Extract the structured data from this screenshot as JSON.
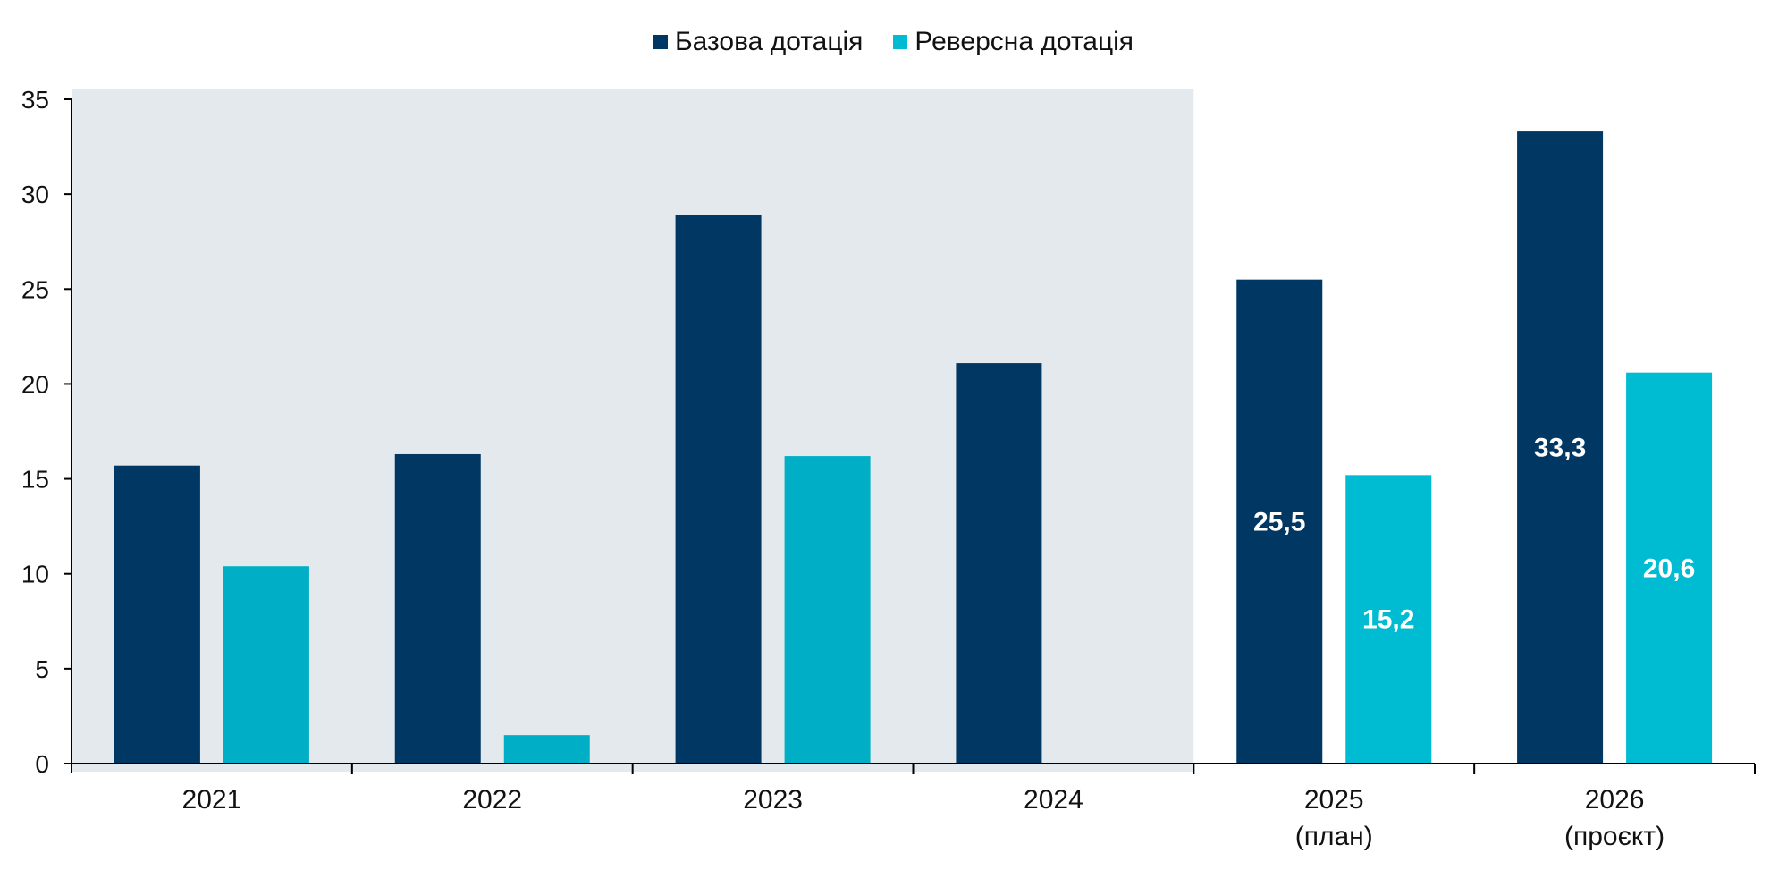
{
  "chart_data": {
    "type": "bar",
    "title": "",
    "xlabel": "",
    "ylabel": "",
    "ylim": [
      0,
      35
    ],
    "yticks": [
      "0",
      "5",
      "10",
      "15",
      "20",
      "25",
      "30",
      "35"
    ],
    "categories": [
      {
        "line1": "2021",
        "line2": ""
      },
      {
        "line1": "2022",
        "line2": ""
      },
      {
        "line1": "2023",
        "line2": ""
      },
      {
        "line1": "2024",
        "line2": ""
      },
      {
        "line1": "2025",
        "line2": "(план)"
      },
      {
        "line1": "2026",
        "line2": "(проєкт)"
      }
    ],
    "shaded_categories": [
      "2021",
      "2022",
      "2023",
      "2024"
    ],
    "series": [
      {
        "name": "Базова дотація",
        "values": [
          15.7,
          16.3,
          28.9,
          21.1,
          25.5,
          33.3
        ],
        "data_labels": [
          "",
          "",
          "",
          "",
          "25,5",
          "33,3"
        ]
      },
      {
        "name": "Реверсна дотація",
        "values": [
          10.4,
          1.5,
          16.2,
          0,
          15.2,
          20.6
        ],
        "data_labels": [
          "",
          "",
          "",
          "",
          "15,2",
          "20,6"
        ]
      }
    ],
    "legend_position": "top-center",
    "grid": false
  },
  "colors": {
    "base": "#003863",
    "reverse_actual": "#00AFC5",
    "reverse_forecast": "#00BCD2",
    "shading": "#E4E9EE",
    "axis": "#000000",
    "label_text": "#FFFFFF"
  }
}
